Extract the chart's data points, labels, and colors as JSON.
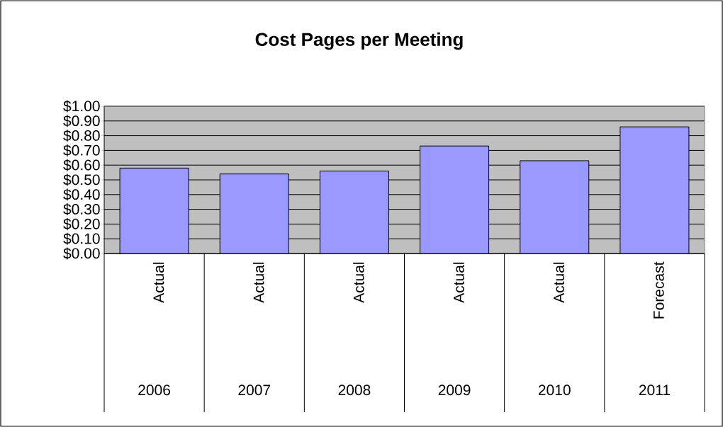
{
  "chart_data": {
    "type": "bar",
    "title": "Cost Pages per Meeting",
    "categories": [
      "Actual",
      "Actual",
      "Actual",
      "Actual",
      "Actual",
      "Forecast"
    ],
    "values": [
      0.58,
      0.54,
      0.56,
      0.73,
      0.63,
      0.86
    ],
    "color": "#9999ff",
    "ylim": [
      0,
      1
    ],
    "yticks": [
      {
        "value": 0,
        "label": "$0.00"
      },
      {
        "value": 0.1,
        "label": "$0.10"
      },
      {
        "value": 0.2,
        "label": "$0.20"
      },
      {
        "value": 0.3,
        "label": "$0.30"
      },
      {
        "value": 0.4,
        "label": "$0.40"
      },
      {
        "value": 0.5,
        "label": "$0.50"
      },
      {
        "value": 0.6,
        "label": "$0.60"
      },
      {
        "value": 0.7,
        "label": "$0.70"
      },
      {
        "value": 0.8,
        "label": "$0.80"
      },
      {
        "value": 0.9,
        "label": "$0.90"
      },
      {
        "value": 1,
        "label": "$1.00"
      }
    ],
    "grid": "y",
    "annotations": [
      "2006",
      "2007",
      "2008",
      "2009",
      "2010",
      "2011"
    ]
  }
}
